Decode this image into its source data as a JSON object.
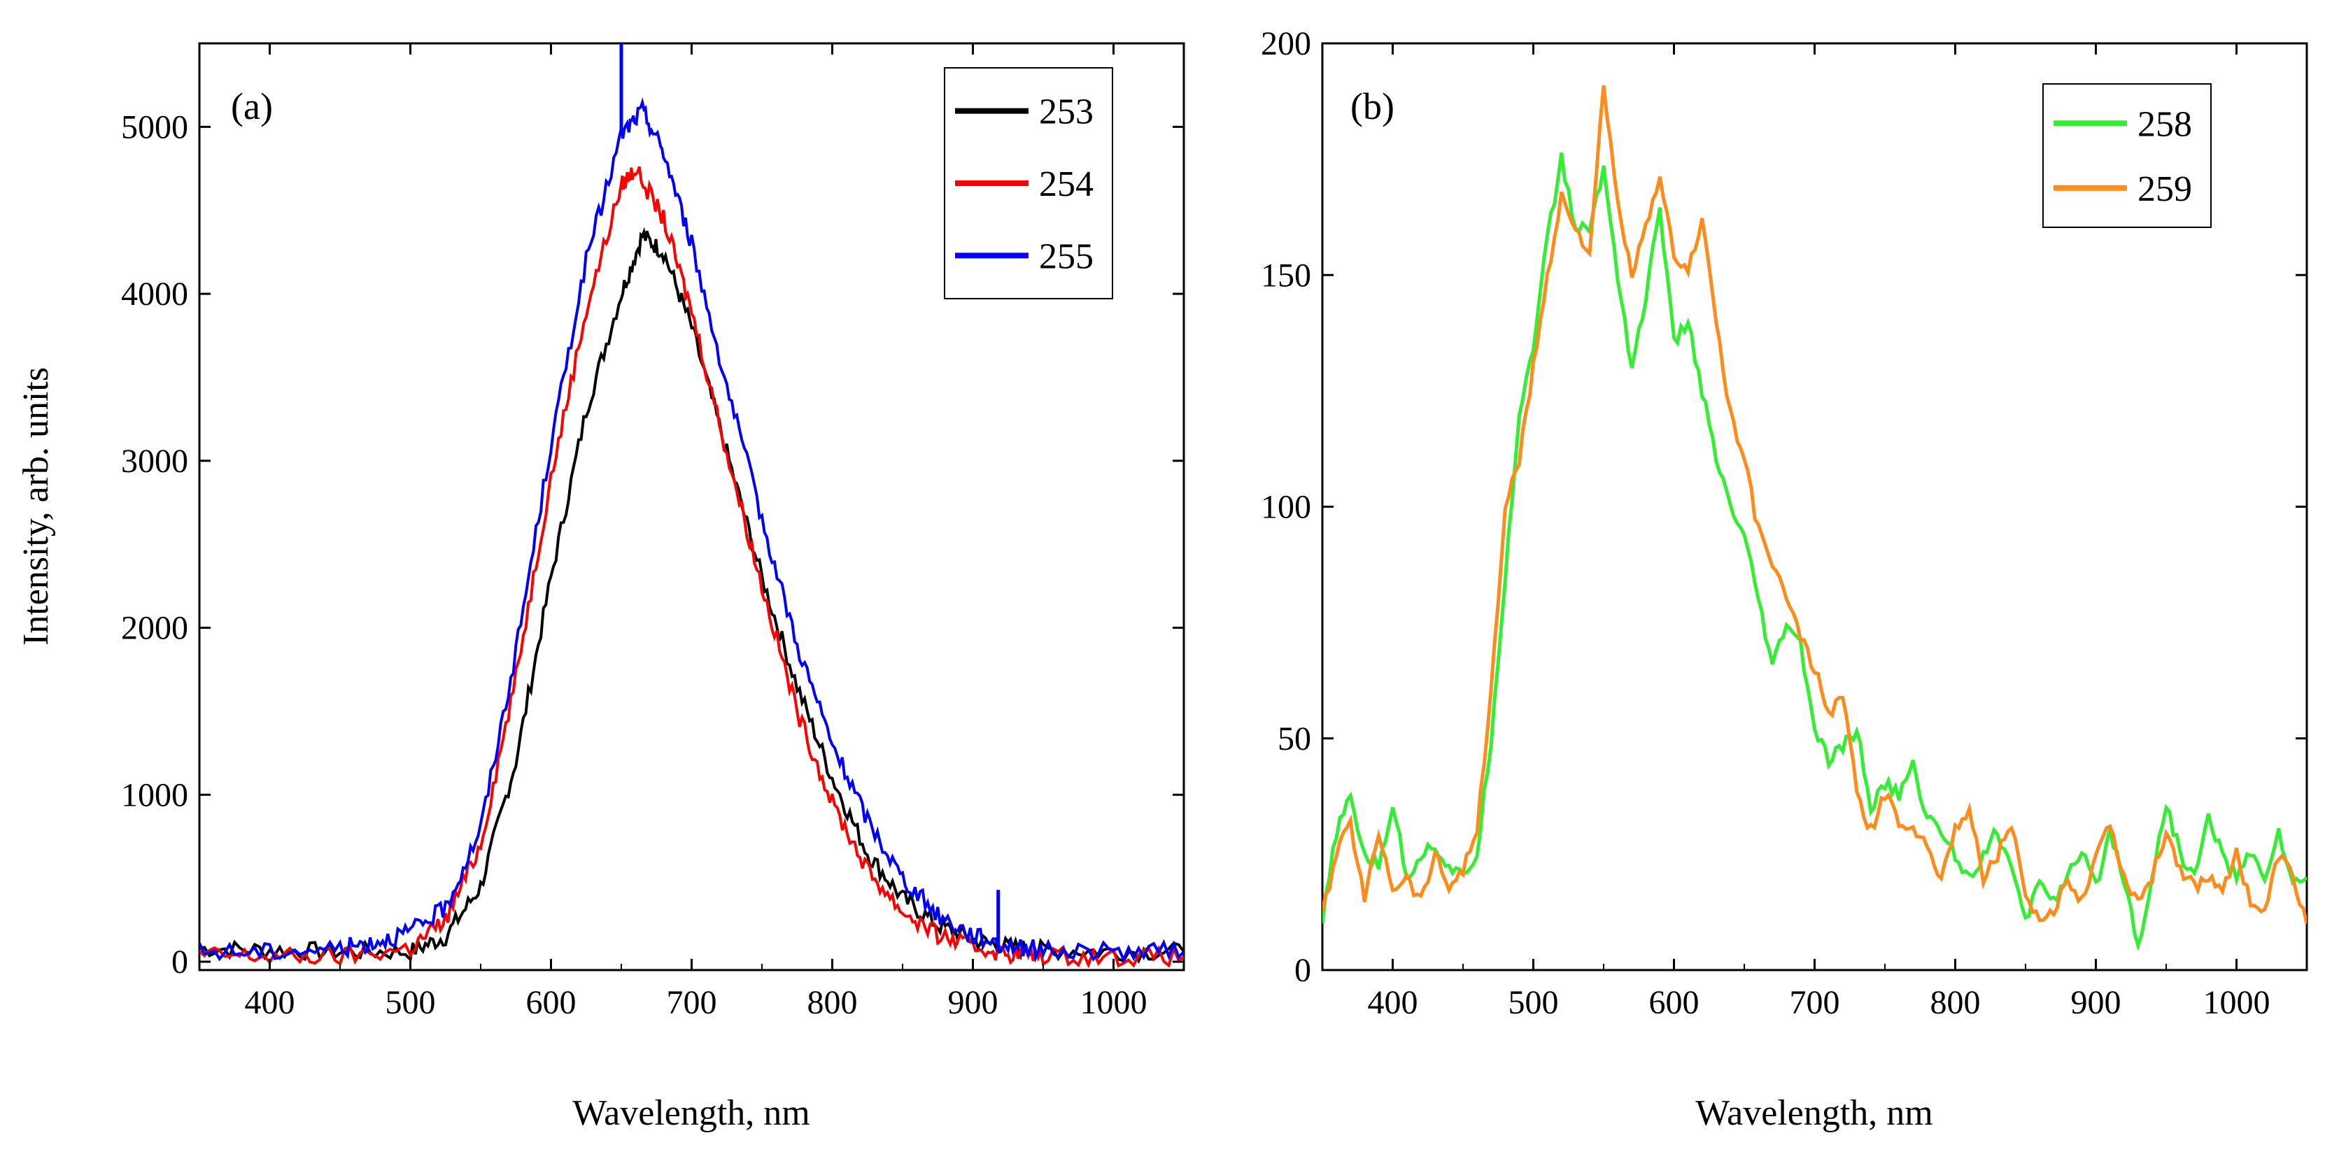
{
  "chart_data": [
    {
      "type": "line",
      "panel_label": "(a)",
      "xlabel": "Wavelength, nm",
      "ylabel": "Intensity, arb. units",
      "xlim": [
        350,
        1050
      ],
      "ylim": [
        -50,
        5500
      ],
      "xticks": [
        400,
        500,
        600,
        700,
        800,
        900,
        1000
      ],
      "yticks": [
        0,
        1000,
        2000,
        3000,
        4000,
        5000
      ],
      "xtick_labels": [
        "400",
        "500",
        "600",
        "700",
        "800",
        "900",
        "1000"
      ],
      "ytick_labels": [
        "0",
        "1000",
        "2000",
        "3000",
        "4000",
        "5000"
      ],
      "legend_position": "top-right",
      "series": [
        {
          "name": "253",
          "color": "#000000",
          "x": [
            350,
            400,
            450,
            500,
            525,
            550,
            575,
            600,
            625,
            650,
            665,
            680,
            700,
            725,
            750,
            775,
            800,
            825,
            850,
            875,
            900,
            925,
            950,
            1000,
            1050
          ],
          "y": [
            80,
            70,
            60,
            60,
            150,
            450,
            1200,
            2300,
            3300,
            4000,
            4350,
            4250,
            3800,
            3050,
            2300,
            1650,
            1100,
            650,
            380,
            220,
            130,
            90,
            70,
            60,
            60
          ]
        },
        {
          "name": "254",
          "color": "#ff0000",
          "x": [
            350,
            400,
            450,
            500,
            525,
            550,
            575,
            600,
            625,
            650,
            660,
            680,
            700,
            725,
            750,
            775,
            800,
            825,
            850,
            875,
            900,
            925,
            950,
            1000,
            1050
          ],
          "y": [
            40,
            30,
            30,
            80,
            250,
            700,
            1700,
            2900,
            3900,
            4650,
            4750,
            4450,
            3900,
            3050,
            2250,
            1500,
            950,
            550,
            300,
            160,
            90,
            50,
            40,
            30,
            30
          ]
        },
        {
          "name": "255",
          "color": "#0000ff",
          "x": [
            350,
            400,
            450,
            475,
            500,
            525,
            550,
            575,
            600,
            625,
            650,
            665,
            680,
            700,
            725,
            750,
            775,
            800,
            825,
            850,
            875,
            900,
            925,
            950,
            1000,
            1050
          ],
          "y": [
            60,
            60,
            80,
            120,
            180,
            320,
            800,
            1850,
            3100,
            4200,
            4950,
            5100,
            4850,
            4300,
            3450,
            2650,
            1900,
            1300,
            850,
            500,
            280,
            160,
            100,
            70,
            60,
            60
          ]
        }
      ],
      "annotations": [
        {
          "text": "sharp spike",
          "x": 650,
          "y": 5500
        },
        {
          "text": "sharp spike",
          "x": 918,
          "y": 430
        }
      ]
    },
    {
      "type": "line",
      "panel_label": "(b)",
      "xlabel": "Wavelength, nm",
      "ylabel": "",
      "xlim": [
        350,
        1050
      ],
      "ylim": [
        0,
        200
      ],
      "xticks": [
        400,
        500,
        600,
        700,
        800,
        900,
        1000
      ],
      "yticks": [
        0,
        50,
        100,
        150,
        200
      ],
      "xtick_labels": [
        "400",
        "500",
        "600",
        "700",
        "800",
        "900",
        "1000"
      ],
      "ytick_labels": [
        "0",
        "50",
        "100",
        "150",
        "200"
      ],
      "legend_position": "top-right",
      "series": [
        {
          "name": "258",
          "color": "#33ee33",
          "x": [
            350,
            360,
            370,
            380,
            390,
            400,
            410,
            420,
            430,
            440,
            450,
            460,
            470,
            480,
            490,
            500,
            510,
            520,
            530,
            540,
            550,
            560,
            570,
            580,
            590,
            600,
            610,
            620,
            630,
            640,
            650,
            660,
            670,
            680,
            690,
            700,
            710,
            720,
            730,
            740,
            750,
            760,
            770,
            780,
            790,
            800,
            810,
            820,
            830,
            840,
            850,
            860,
            870,
            880,
            890,
            900,
            910,
            920,
            930,
            940,
            950,
            960,
            970,
            980,
            990,
            1000,
            1010,
            1020,
            1030,
            1040,
            1050
          ],
          "y": [
            10,
            30,
            37,
            25,
            22,
            36,
            20,
            25,
            27,
            22,
            20,
            25,
            50,
            85,
            120,
            135,
            158,
            175,
            160,
            160,
            173,
            150,
            130,
            145,
            165,
            135,
            140,
            125,
            110,
            100,
            93,
            80,
            65,
            75,
            70,
            52,
            45,
            48,
            52,
            35,
            40,
            38,
            44,
            33,
            30,
            25,
            20,
            25,
            30,
            22,
            10,
            20,
            15,
            20,
            25,
            18,
            30,
            20,
            5,
            20,
            36,
            25,
            20,
            33,
            25,
            20,
            25,
            20,
            30,
            18,
            20
          ]
        },
        {
          "name": "259",
          "color": "#ff8c1a",
          "x": [
            350,
            360,
            370,
            380,
            390,
            400,
            410,
            420,
            430,
            440,
            450,
            460,
            470,
            480,
            490,
            500,
            510,
            520,
            530,
            540,
            550,
            560,
            570,
            580,
            590,
            600,
            610,
            620,
            630,
            640,
            650,
            660,
            670,
            680,
            690,
            700,
            710,
            720,
            730,
            740,
            750,
            760,
            770,
            780,
            790,
            800,
            810,
            820,
            830,
            840,
            850,
            860,
            870,
            880,
            890,
            900,
            910,
            920,
            930,
            940,
            950,
            960,
            970,
            980,
            990,
            1000,
            1010,
            1020,
            1030,
            1040,
            1050
          ],
          "y": [
            12,
            25,
            32,
            15,
            30,
            18,
            20,
            15,
            25,
            18,
            22,
            30,
            60,
            100,
            110,
            130,
            150,
            167,
            160,
            155,
            190,
            165,
            150,
            160,
            170,
            155,
            150,
            163,
            140,
            120,
            110,
            95,
            88,
            80,
            72,
            65,
            55,
            60,
            38,
            30,
            38,
            32,
            30,
            28,
            20,
            30,
            35,
            20,
            25,
            32,
            15,
            10,
            12,
            20,
            15,
            25,
            32,
            20,
            15,
            20,
            30,
            22,
            18,
            20,
            18,
            25,
            15,
            12,
            25,
            20,
            10
          ]
        }
      ]
    }
  ]
}
